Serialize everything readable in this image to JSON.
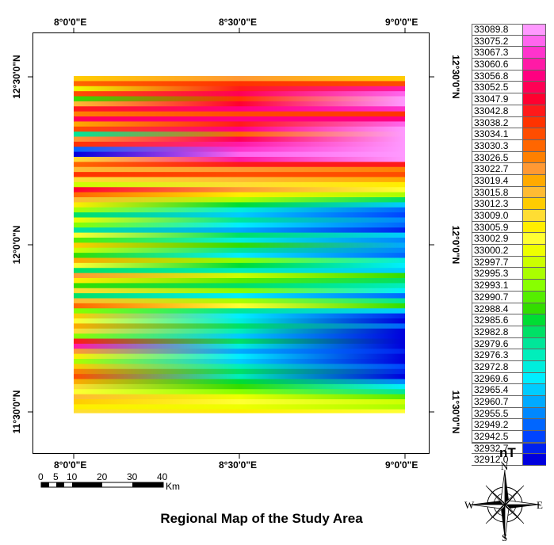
{
  "title": "Regional Map of the Study Area",
  "unit": "nT",
  "lon_ticks": [
    "8°0'0\"E",
    "8°30'0\"E",
    "9°0'0\"E"
  ],
  "lat_ticks": [
    "12°30'0\"N",
    "12°0'0\"N",
    "11°30'0\"N"
  ],
  "legend": {
    "values": [
      "33089.8",
      "33075.2",
      "33067.3",
      "33060.6",
      "33056.8",
      "33052.5",
      "33047.9",
      "33042.8",
      "33038.2",
      "33034.1",
      "33030.3",
      "33026.5",
      "33022.7",
      "33019.4",
      "33015.8",
      "33012.3",
      "33009.0",
      "33005.9",
      "33002.9",
      "33000.2",
      "32997.7",
      "32995.3",
      "32993.1",
      "32990.7",
      "32988.4",
      "32985.6",
      "32982.8",
      "32979.6",
      "32976.3",
      "32972.8",
      "32969.6",
      "32965.4",
      "32960.7",
      "32955.5",
      "32949.2",
      "32942.5",
      "32932.7",
      "32912.0"
    ],
    "colors": [
      "#ff99ff",
      "#ff66ee",
      "#ff33cc",
      "#ff1aa6",
      "#ff0080",
      "#ff0055",
      "#ff0030",
      "#ff1a1a",
      "#ff3300",
      "#ff4d00",
      "#ff6600",
      "#ff8000",
      "#ff9933",
      "#ffaa00",
      "#ffbb33",
      "#ffcc00",
      "#ffdd33",
      "#ffee00",
      "#ffff33",
      "#eeff00",
      "#ccff00",
      "#aaff00",
      "#88ff00",
      "#55ee00",
      "#33dd00",
      "#00dd33",
      "#00e066",
      "#00e699",
      "#00eebb",
      "#00eedd",
      "#00eeff",
      "#00ccff",
      "#00aaff",
      "#0088ff",
      "#0066ff",
      "#0044ff",
      "#0022ee",
      "#0000dd"
    ]
  },
  "scale_bar": {
    "labels": [
      "0",
      "5",
      "10",
      "20",
      "30",
      "40"
    ],
    "unit": "Km"
  },
  "compass": {
    "n": "N",
    "s": "S",
    "e": "E",
    "w": "W"
  }
}
